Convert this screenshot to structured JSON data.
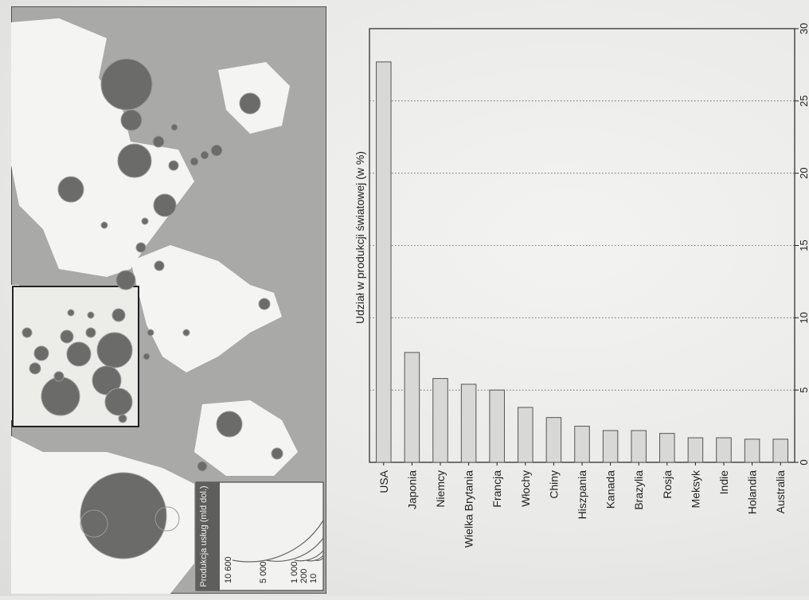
{
  "map": {
    "legend_title": "Produkcja usług (mld dol.)",
    "legend_values": [
      "10 600",
      "5 000",
      "1 000",
      "200",
      "10"
    ],
    "colors": {
      "ocean": "#a9a9a7",
      "land": "#f4f4f2",
      "bubble": "#6b6b69",
      "legend_header": "#5e5e5c"
    }
  },
  "chart_data": {
    "type": "bar",
    "orientation": "vertical-rotated",
    "categories": [
      "USA",
      "Japonia",
      "Niemcy",
      "Wielka Brytania",
      "Francja",
      "Włochy",
      "Chiny",
      "Hiszpania",
      "Kanada",
      "Brazylia",
      "Rosja",
      "Meksyk",
      "Indie",
      "Holandia",
      "Australia"
    ],
    "values": [
      27.7,
      7.6,
      5.8,
      5.4,
      5.0,
      3.8,
      3.1,
      2.5,
      2.2,
      2.2,
      2.0,
      1.7,
      1.7,
      1.6,
      1.6
    ],
    "ylabel": "Udział w produkcji światowej (w %)",
    "ylim": [
      0,
      30
    ],
    "ticks": [
      0,
      5,
      10,
      15,
      20,
      25,
      30
    ],
    "grid": true,
    "colors": {
      "bar": "#d8d8d6",
      "bar_stroke": "#555555",
      "grid": "#555555"
    }
  }
}
